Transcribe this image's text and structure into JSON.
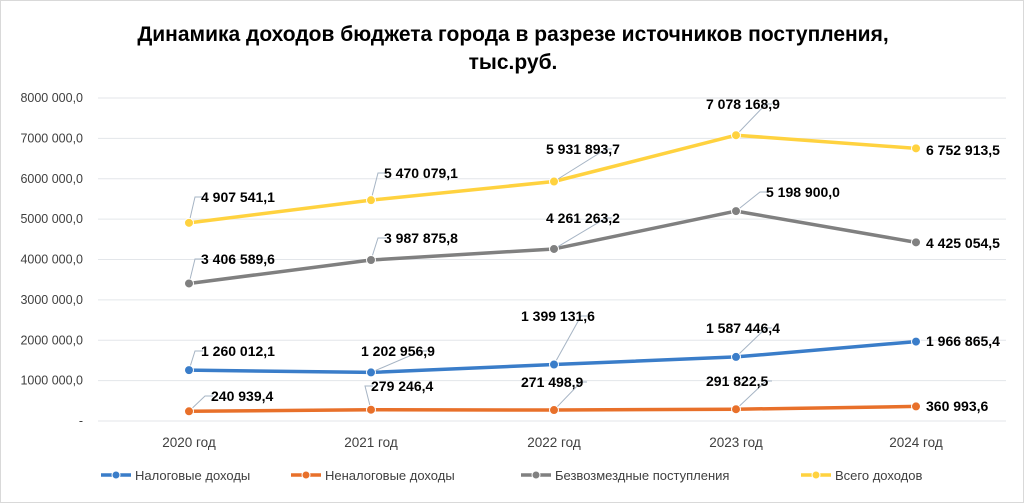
{
  "chart_data": {
    "type": "line",
    "title": "Динамика доходов бюджета города в разрезе источников поступления, тыс.руб.",
    "title_lines": [
      "Динамика доходов бюджета города в разрезе источников поступления,",
      "тыс.руб."
    ],
    "categories": [
      "2020 год",
      "2021 год",
      "2022 год",
      "2023 год",
      "2024 год"
    ],
    "ylim": [
      0,
      8000000
    ],
    "yticks": [
      0,
      1000000,
      2000000,
      3000000,
      4000000,
      5000000,
      6000000,
      7000000,
      8000000
    ],
    "ytick_labels": [
      "-",
      "1000 000,0",
      "2000 000,0",
      "3000 000,0",
      "4000 000,0",
      "5000 000,0",
      "6000 000,0",
      "7000 000,0",
      "8000 000,0"
    ],
    "grid": true,
    "legend_position": "bottom",
    "series": [
      {
        "name": "Налоговые доходы",
        "color": "#3a7dc9",
        "values": [
          1260012.1,
          1202956.9,
          1399131.6,
          1587446.4,
          1966865.4
        ],
        "labels": [
          "1 260 012,1",
          "1 202 956,9",
          "1 399 131,6",
          "1 587 446,4",
          "1 966 865,4"
        ]
      },
      {
        "name": "Неналоговые доходы",
        "color": "#e8702a",
        "values": [
          240939.4,
          279246.4,
          271498.9,
          291822.5,
          360993.6
        ],
        "labels": [
          "240 939,4",
          "279 246,4",
          "271 498,9",
          "291 822,5",
          "360 993,6"
        ]
      },
      {
        "name": "Безвозмездные поступления",
        "color": "#808080",
        "values": [
          3406589.6,
          3987875.8,
          4261263.2,
          5198900.0,
          4425054.5
        ],
        "labels": [
          "3 406 589,6",
          "3 987 875,8",
          "4 261 263,2",
          "5 198 900,0",
          "4 425 054,5"
        ]
      },
      {
        "name": "Всего доходов",
        "color": "#ffd23f",
        "values": [
          4907541.1,
          5470079.1,
          5931893.7,
          7078168.9,
          6752913.5
        ],
        "labels": [
          "4 907 541,1",
          "5 470 079,1",
          "5 931 893,7",
          "7 078 168,9",
          "6 752 913,5"
        ]
      }
    ]
  }
}
